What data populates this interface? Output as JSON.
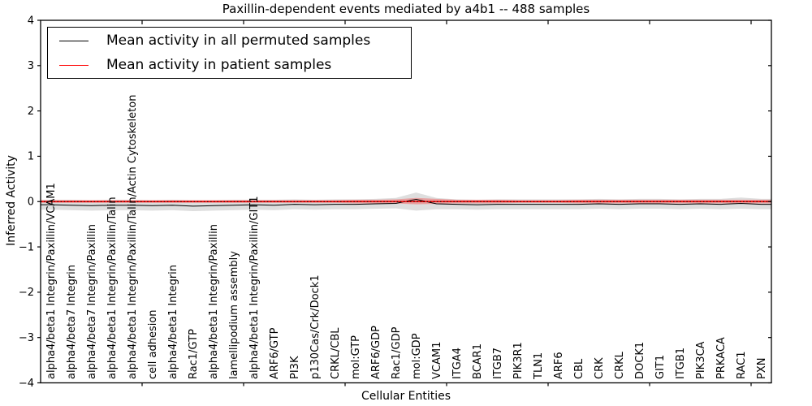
{
  "figure": {
    "background_color": "#ffffff",
    "frame_color": "#000000"
  },
  "chart_data": {
    "type": "line",
    "title": "Paxillin-dependent events mediated by a4b1 -- 488 samples",
    "xlabel": "Cellular Entities",
    "ylabel": "Inferred Activity",
    "ylim": [
      -4,
      4
    ],
    "xlim": [
      0,
      36
    ],
    "yticks": [
      4,
      3,
      2,
      1,
      0,
      -1,
      -2,
      -3,
      -4
    ],
    "ytick_labels": [
      "4",
      "3",
      "2",
      "1",
      "0",
      "−1",
      "−2",
      "−3",
      "−4"
    ],
    "xticks": [
      5,
      10,
      15,
      20,
      25,
      30,
      35
    ],
    "grid": false,
    "legend_position": "upper left",
    "zero_line": {
      "y": 0,
      "style": "dotted",
      "color": "#000000"
    },
    "categories": [
      "alpha4/beta1 Integrin/Paxillin/VCAM1",
      "alpha4/beta7 Integrin",
      "alpha4/beta7 Integrin/Paxillin",
      "alpha4/beta1 Integrin/Paxillin/Talin",
      "alpha4/beta1 Integrin/Paxillin/Talin/Actin Cytoskeleton",
      "cell adhesion",
      "alpha4/beta1 Integrin",
      "Rac1/GTP",
      "alpha4/beta1 Integrin/Paxillin",
      "lamellipodium assembly",
      "alpha4/beta1 Integrin/Paxillin/GIT1",
      "ARF6/GTP",
      "PI3K",
      "p130Cas/Crk/Dock1",
      "CRKL/CBL",
      "mol:GTP",
      "ARF6/GDP",
      "Rac1/GDP",
      "mol:GDP",
      "VCAM1",
      "ITGA4",
      "BCAR1",
      "ITGB7",
      "PIK3R1",
      "TLN1",
      "ARF6",
      "CBL",
      "CRK",
      "CRKL",
      "DOCK1",
      "GIT1",
      "ITGB1",
      "PIK3CA",
      "PRKACA",
      "RAC1",
      "PXN"
    ],
    "series": [
      {
        "name": "Mean activity in all permuted samples",
        "color": "#000000",
        "line_width": 1,
        "values": [
          -0.07,
          -0.08,
          -0.09,
          -0.08,
          -0.08,
          -0.09,
          -0.08,
          -0.1,
          -0.09,
          -0.08,
          -0.07,
          -0.08,
          -0.06,
          -0.07,
          -0.06,
          -0.06,
          -0.05,
          -0.04,
          0.05,
          -0.05,
          -0.06,
          -0.07,
          -0.06,
          -0.06,
          -0.06,
          -0.06,
          -0.06,
          -0.05,
          -0.06,
          -0.05,
          -0.05,
          -0.06,
          -0.05,
          -0.06,
          -0.04,
          -0.06
        ]
      },
      {
        "name": "Mean activity in patient samples",
        "color": "#ff0000",
        "line_width": 1.6,
        "values": [
          0.0,
          0.0,
          0.0,
          0.0,
          0.0,
          0.0,
          0.0,
          0.0,
          0.0,
          0.0,
          0.0,
          0.0,
          0.0,
          0.0,
          0.0,
          0.0,
          0.0,
          0.0,
          0.0,
          0.0,
          0.0,
          0.0,
          0.0,
          0.0,
          0.0,
          0.0,
          0.0,
          0.0,
          0.0,
          0.0,
          0.0,
          0.0,
          0.0,
          0.0,
          0.0,
          0.0
        ]
      }
    ],
    "bands": [
      {
        "name": "permuted-samples-spread",
        "fill": "rgba(0,0,0,0.13)",
        "upper": [
          0.04,
          0.04,
          0.03,
          0.04,
          0.04,
          0.03,
          0.04,
          0.03,
          0.03,
          0.04,
          0.04,
          0.04,
          0.05,
          0.04,
          0.05,
          0.05,
          0.06,
          0.08,
          0.2,
          0.08,
          0.05,
          0.04,
          0.05,
          0.05,
          0.05,
          0.05,
          0.05,
          0.06,
          0.05,
          0.06,
          0.06,
          0.05,
          0.06,
          0.06,
          0.09,
          0.06
        ],
        "lower": [
          -0.18,
          -0.19,
          -0.2,
          -0.19,
          -0.19,
          -0.2,
          -0.19,
          -0.21,
          -0.2,
          -0.19,
          -0.18,
          -0.19,
          -0.17,
          -0.18,
          -0.17,
          -0.17,
          -0.16,
          -0.15,
          -0.2,
          -0.17,
          -0.17,
          -0.18,
          -0.17,
          -0.17,
          -0.17,
          -0.17,
          -0.17,
          -0.16,
          -0.17,
          -0.16,
          -0.16,
          -0.17,
          -0.16,
          -0.17,
          -0.16,
          -0.17
        ]
      },
      {
        "name": "patient-samples-spread",
        "fill": "rgba(255,0,0,0.28)",
        "upper": [
          0.03,
          0.03,
          0.03,
          0.03,
          0.03,
          0.03,
          0.03,
          0.03,
          0.03,
          0.03,
          0.03,
          0.03,
          0.03,
          0.03,
          0.03,
          0.04,
          0.04,
          0.05,
          0.08,
          0.06,
          0.04,
          0.04,
          0.04,
          0.03,
          0.03,
          0.03,
          0.04,
          0.04,
          0.04,
          0.04,
          0.04,
          0.04,
          0.04,
          0.04,
          0.04,
          0.04
        ],
        "lower": [
          -0.03,
          -0.03,
          -0.03,
          -0.03,
          -0.03,
          -0.03,
          -0.03,
          -0.03,
          -0.03,
          -0.03,
          -0.03,
          -0.03,
          -0.03,
          -0.03,
          -0.03,
          -0.04,
          -0.04,
          -0.04,
          -0.06,
          -0.05,
          -0.04,
          -0.04,
          -0.04,
          -0.03,
          -0.03,
          -0.03,
          -0.04,
          -0.04,
          -0.04,
          -0.04,
          -0.04,
          -0.04,
          -0.04,
          -0.04,
          -0.04,
          -0.04
        ]
      }
    ]
  },
  "legend": {
    "items": [
      {
        "label": "Mean activity in all permuted samples",
        "color": "#000000"
      },
      {
        "label": "Mean activity in patient samples",
        "color": "#ff0000"
      }
    ]
  }
}
